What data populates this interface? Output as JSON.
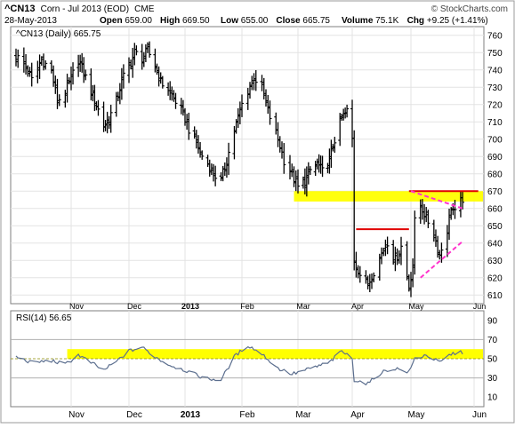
{
  "header": {
    "symbol": "^CN13",
    "description": "Corn - Jul 2013 (EOD)",
    "exchange": "CME",
    "date": "28-May-2013",
    "stats": [
      {
        "label": "Open",
        "value": "659.00"
      },
      {
        "label": "High",
        "value": "669.50"
      },
      {
        "label": "Low",
        "value": "655.00"
      },
      {
        "label": "Close",
        "value": "665.75"
      },
      {
        "label": "Volume",
        "value": "75.1K"
      },
      {
        "label": "Chg",
        "value": "+9.25 (+1.41%)"
      }
    ],
    "watermark": "© StockCharts.com"
  },
  "chart_data": [
    {
      "type": "ohlc",
      "legend": "^CN13 (Daily) 665.75",
      "x_labels": [
        "Nov",
        "Dec",
        "2013",
        "Feb",
        "Mar",
        "Apr",
        "May",
        "Jun"
      ],
      "y_ticks": [
        610,
        620,
        630,
        640,
        650,
        660,
        670,
        680,
        690,
        700,
        710,
        720,
        730,
        740,
        750,
        760
      ],
      "ylim": [
        605,
        765
      ],
      "start_date": "2012-10-04",
      "close_path": [
        [
          "2012-10-04",
          748
        ],
        [
          "2012-10-09",
          742
        ],
        [
          "2012-10-12",
          734
        ],
        [
          "2012-10-17",
          746
        ],
        [
          "2012-10-22",
          739
        ],
        [
          "2012-10-25",
          722
        ],
        [
          "2012-10-29",
          727
        ],
        [
          "2012-11-01",
          735
        ],
        [
          "2012-11-05",
          746
        ],
        [
          "2012-11-08",
          738
        ],
        [
          "2012-11-12",
          728
        ],
        [
          "2012-11-15",
          720
        ],
        [
          "2012-11-19",
          708
        ],
        [
          "2012-11-22",
          712
        ],
        [
          "2012-11-26",
          722
        ],
        [
          "2012-11-29",
          734
        ],
        [
          "2012-12-03",
          742
        ],
        [
          "2012-12-06",
          750
        ],
        [
          "2012-12-10",
          747
        ],
        [
          "2012-12-13",
          751
        ],
        [
          "2012-12-17",
          743
        ],
        [
          "2012-12-20",
          733
        ],
        [
          "2012-12-24",
          729
        ],
        [
          "2012-12-28",
          722
        ],
        [
          "2013-01-02",
          712
        ],
        [
          "2013-01-04",
          706
        ],
        [
          "2013-01-08",
          698
        ],
        [
          "2013-01-10",
          692
        ],
        [
          "2013-01-14",
          686
        ],
        [
          "2013-01-17",
          680
        ],
        [
          "2013-01-21",
          676
        ],
        [
          "2013-01-24",
          688
        ],
        [
          "2013-01-28",
          705
        ],
        [
          "2013-02-01",
          720
        ],
        [
          "2013-02-04",
          728
        ],
        [
          "2013-02-07",
          736
        ],
        [
          "2013-02-11",
          729
        ],
        [
          "2013-02-14",
          716
        ],
        [
          "2013-02-19",
          700
        ],
        [
          "2013-02-22",
          688
        ],
        [
          "2013-02-26",
          680
        ],
        [
          "2013-03-01",
          672
        ],
        [
          "2013-03-05",
          676
        ],
        [
          "2013-03-08",
          682
        ],
        [
          "2013-03-12",
          686
        ],
        [
          "2013-03-15",
          681
        ],
        [
          "2013-03-19",
          688
        ],
        [
          "2013-03-22",
          700
        ],
        [
          "2013-03-26",
          712
        ],
        [
          "2013-03-29",
          716
        ],
        [
          "2013-04-01",
          700
        ],
        [
          "2013-04-02",
          630
        ],
        [
          "2013-04-05",
          622
        ],
        [
          "2013-04-09",
          616
        ],
        [
          "2013-04-12",
          624
        ],
        [
          "2013-04-16",
          634
        ],
        [
          "2013-04-19",
          641
        ],
        [
          "2013-04-23",
          630
        ],
        [
          "2013-04-26",
          638
        ],
        [
          "2013-04-30",
          615
        ],
        [
          "2013-05-02",
          628
        ],
        [
          "2013-05-03",
          652
        ],
        [
          "2013-05-06",
          662
        ],
        [
          "2013-05-09",
          655
        ],
        [
          "2013-05-13",
          645
        ],
        [
          "2013-05-16",
          633
        ],
        [
          "2013-05-20",
          648
        ],
        [
          "2013-05-22",
          661
        ],
        [
          "2013-05-24",
          657
        ],
        [
          "2013-05-28",
          665.75
        ]
      ],
      "overlays": {
        "support_zone": [
          664,
          670
        ],
        "resistance_lines": [
          {
            "from": "2013-04-03",
            "to": "2013-04-30",
            "value": 648
          },
          {
            "from": "2013-04-30",
            "to": "2013-06-05",
            "value": 670
          }
        ],
        "trend_lines": [
          {
            "from": [
              "2013-05-01",
              670
            ],
            "to": [
              "2013-05-28",
              660
            ]
          },
          {
            "from": [
              "2013-05-06",
              620
            ],
            "to": [
              "2013-05-28",
              641
            ]
          }
        ]
      }
    },
    {
      "type": "line",
      "legend": "RSI(14) 56.65",
      "y_ticks": [
        10,
        30,
        50,
        70,
        90
      ],
      "ylim": [
        0,
        100
      ],
      "band": [
        50,
        60
      ],
      "points": [
        [
          "2012-10-04",
          52
        ],
        [
          "2012-10-12",
          46
        ],
        [
          "2012-10-22",
          48
        ],
        [
          "2012-10-29",
          44
        ],
        [
          "2012-11-05",
          54
        ],
        [
          "2012-11-12",
          46
        ],
        [
          "2012-11-19",
          38
        ],
        [
          "2012-11-26",
          47
        ],
        [
          "2012-12-03",
          58
        ],
        [
          "2012-12-10",
          62
        ],
        [
          "2012-12-17",
          52
        ],
        [
          "2012-12-24",
          44
        ],
        [
          "2013-01-02",
          38
        ],
        [
          "2013-01-08",
          33
        ],
        [
          "2013-01-14",
          29
        ],
        [
          "2013-01-21",
          28
        ],
        [
          "2013-01-28",
          52
        ],
        [
          "2013-02-04",
          64
        ],
        [
          "2013-02-11",
          55
        ],
        [
          "2013-02-19",
          40
        ],
        [
          "2013-02-26",
          34
        ],
        [
          "2013-03-05",
          38
        ],
        [
          "2013-03-12",
          42
        ],
        [
          "2013-03-19",
          46
        ],
        [
          "2013-03-26",
          58
        ],
        [
          "2013-04-01",
          50
        ],
        [
          "2013-04-02",
          28
        ],
        [
          "2013-04-09",
          24
        ],
        [
          "2013-04-16",
          36
        ],
        [
          "2013-04-23",
          40
        ],
        [
          "2013-04-30",
          36
        ],
        [
          "2013-05-03",
          50
        ],
        [
          "2013-05-09",
          54
        ],
        [
          "2013-05-16",
          46
        ],
        [
          "2013-05-22",
          55
        ],
        [
          "2013-05-28",
          56.65
        ]
      ]
    }
  ]
}
